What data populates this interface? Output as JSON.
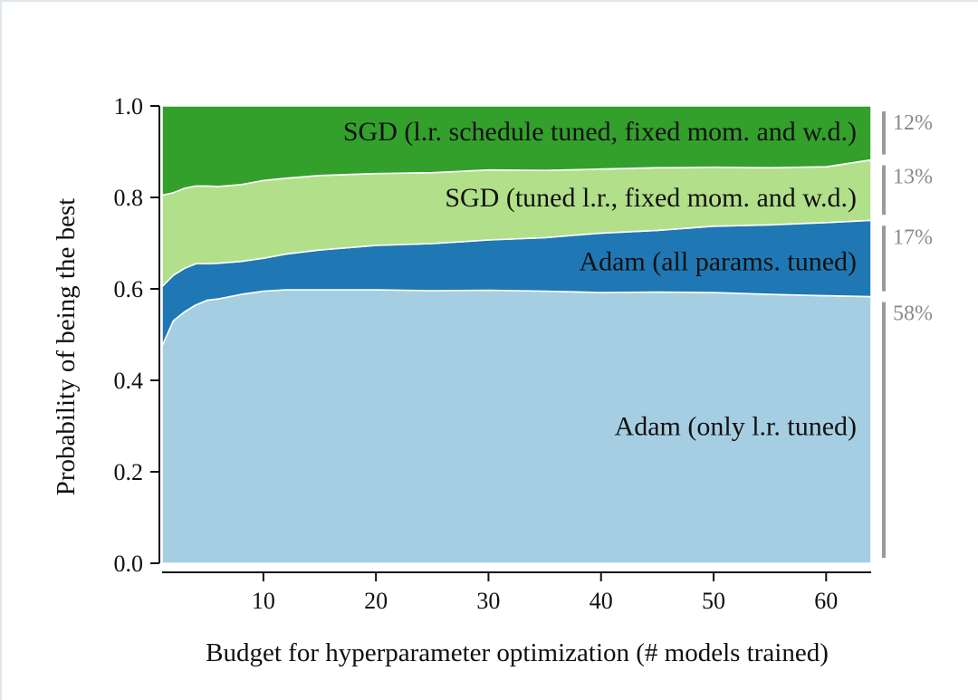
{
  "chart_data": {
    "type": "area",
    "stacked": true,
    "xlabel": "Budget for hyperparameter optimization (# models trained)",
    "ylabel": "Probability of being the best",
    "xlim": [
      1,
      64
    ],
    "ylim": [
      0,
      1
    ],
    "xticks": [
      10,
      20,
      30,
      40,
      50,
      60
    ],
    "yticks": [
      "0.0",
      "0.2",
      "0.4",
      "0.6",
      "0.8",
      "1.0"
    ],
    "x": [
      1,
      2,
      3,
      4,
      5,
      6,
      8,
      10,
      12,
      15,
      20,
      25,
      30,
      35,
      40,
      45,
      50,
      55,
      60,
      64
    ],
    "series": [
      {
        "name": "Adam (only l.r. tuned)",
        "color": "#a6cee3",
        "share": "58%",
        "values": [
          0.475,
          0.53,
          0.55,
          0.565,
          0.575,
          0.578,
          0.588,
          0.595,
          0.598,
          0.598,
          0.598,
          0.596,
          0.597,
          0.595,
          0.592,
          0.593,
          0.592,
          0.588,
          0.585,
          0.583
        ]
      },
      {
        "name": "Adam (all params. tuned)",
        "color": "#1f78b4",
        "share": "17%",
        "values": [
          0.13,
          0.1,
          0.095,
          0.09,
          0.08,
          0.078,
          0.072,
          0.072,
          0.078,
          0.087,
          0.097,
          0.103,
          0.11,
          0.117,
          0.13,
          0.135,
          0.145,
          0.152,
          0.16,
          0.167
        ]
      },
      {
        "name": "SGD (tuned l.r., fixed mom. and w.d.)",
        "color": "#b2df8a",
        "share": "13%",
        "values": [
          0.2,
          0.18,
          0.175,
          0.17,
          0.17,
          0.168,
          0.168,
          0.17,
          0.166,
          0.163,
          0.157,
          0.155,
          0.153,
          0.147,
          0.14,
          0.137,
          0.129,
          0.125,
          0.122,
          0.132
        ]
      },
      {
        "name": "SGD (l.r. schedule tuned, fixed mom. and w.d.)",
        "color": "#33a02c",
        "share": "12%",
        "values": [
          0.195,
          0.19,
          0.18,
          0.175,
          0.175,
          0.176,
          0.172,
          0.163,
          0.158,
          0.152,
          0.148,
          0.146,
          0.14,
          0.141,
          0.138,
          0.135,
          0.134,
          0.135,
          0.133,
          0.118
        ]
      }
    ]
  }
}
